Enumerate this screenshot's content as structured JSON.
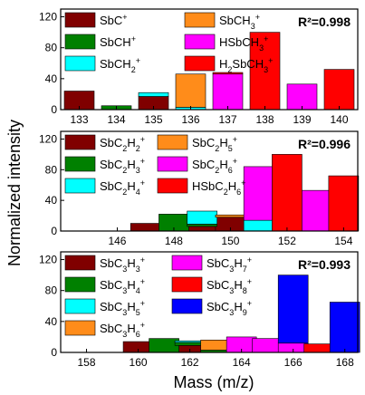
{
  "figure": {
    "ylabel": "Normalized intensity",
    "xlabel": "Mass (m/z)"
  },
  "chart_data": [
    {
      "type": "bar",
      "stacked": true,
      "r2": "R²=0.998",
      "xlim": [
        132.5,
        140.5
      ],
      "xticks": [
        133,
        134,
        135,
        136,
        137,
        138,
        139,
        140
      ],
      "ylim": [
        0,
        130
      ],
      "yticks": [
        0,
        40,
        80,
        120
      ],
      "series": [
        {
          "name": "SbC",
          "sup": "+",
          "color": "#800000",
          "values": [
            [
              133,
              24
            ],
            [
              135,
              17
            ]
          ]
        },
        {
          "name": "SbCH",
          "sup": "+",
          "color": "#008000",
          "values": [
            [
              134,
              5
            ]
          ]
        },
        {
          "name": "SbCH",
          "sub": "2",
          "sup": "+",
          "color": "#00ffff",
          "values": [
            [
              135,
              5
            ],
            [
              136,
              3
            ]
          ]
        },
        {
          "name": "SbCH",
          "sub": "3",
          "sup": "+",
          "color": "#ff8c1a",
          "values": [
            [
              136,
              43
            ]
          ]
        },
        {
          "name": "HSbCH",
          "sub": "3",
          "sup": "+",
          "color": "#ff00ff",
          "values": [
            [
              137,
              46
            ],
            [
              139,
              33
            ]
          ]
        },
        {
          "name": "H",
          "sub": "2",
          "name2": "SbCH",
          "sub2": "3",
          "sup": "+",
          "color": "#ff0000",
          "values": [
            [
              137,
              2
            ],
            [
              138,
              100
            ],
            [
              140,
              52
            ]
          ]
        }
      ]
    },
    {
      "type": "bar",
      "stacked": true,
      "r2": "R²=0.996",
      "xlim": [
        144,
        154.5
      ],
      "xticks": [
        146,
        148,
        150,
        152,
        154
      ],
      "ylim": [
        0,
        130
      ],
      "yticks": [
        0,
        40,
        80,
        120
      ],
      "series": [
        {
          "name": "SbC",
          "sub": "2",
          "name2": "H",
          "sub2": "2",
          "sup": "+",
          "color": "#800000",
          "values": [
            [
              147,
              10
            ],
            [
              149,
              6
            ],
            [
              150,
              18
            ]
          ]
        },
        {
          "name": "SbC",
          "sub": "2",
          "name2": "H",
          "sub2": "3",
          "sup": "+",
          "color": "#008000",
          "values": [
            [
              148,
              22
            ],
            [
              149,
              3
            ]
          ]
        },
        {
          "name": "SbC",
          "sub": "2",
          "name2": "H",
          "sub2": "4",
          "sup": "+",
          "color": "#00ffff",
          "values": [
            [
              149,
              17
            ],
            [
              151,
              14
            ]
          ]
        },
        {
          "name": "SbC",
          "sub": "2",
          "name2": "H",
          "sub2": "5",
          "sup": "+",
          "color": "#ff8c1a",
          "values": [
            [
              150,
              3
            ]
          ]
        },
        {
          "name": "SbC",
          "sub": "2",
          "name2": "H",
          "sub2": "6",
          "sup": "+",
          "color": "#ff00ff",
          "values": [
            [
              151,
              70
            ],
            [
              153,
              53
            ]
          ]
        },
        {
          "name": "HSbC",
          "sub": "2",
          "name2": "H",
          "sub2": "6",
          "sup": "+",
          "color": "#ff0000",
          "values": [
            [
              152,
              100
            ],
            [
              154,
              72
            ]
          ]
        }
      ]
    },
    {
      "type": "bar",
      "stacked": true,
      "r2": "R²=0.993",
      "xlim": [
        157,
        168.5
      ],
      "xticks": [
        158,
        160,
        162,
        164,
        166,
        168
      ],
      "ylim": [
        0,
        130
      ],
      "yticks": [
        0,
        40,
        80,
        120
      ],
      "series": [
        {
          "name": "SbC",
          "sub": "3",
          "name2": "H",
          "sub2": "3",
          "sup": "+",
          "color": "#800000",
          "values": [
            [
              160,
              14
            ],
            [
              162,
              9
            ]
          ]
        },
        {
          "name": "SbC",
          "sub": "3",
          "name2": "H",
          "sub2": "4",
          "sup": "+",
          "color": "#008000",
          "values": [
            [
              161,
              18
            ],
            [
              162,
              4
            ],
            [
              163,
              3
            ]
          ]
        },
        {
          "name": "SbC",
          "sub": "3",
          "name2": "H",
          "sub2": "5",
          "sup": "+",
          "color": "#00ffff",
          "values": [
            [
              162,
              2
            ]
          ]
        },
        {
          "name": "SbC",
          "sub": "3",
          "name2": "H",
          "sub2": "6",
          "sup": "+",
          "color": "#ff8c1a",
          "values": [
            [
              163,
              13
            ]
          ]
        },
        {
          "name": "SbC",
          "sub": "3",
          "name2": "H",
          "sub2": "7",
          "sup": "+",
          "color": "#ff00ff",
          "values": [
            [
              164,
              20
            ],
            [
              165,
              18
            ],
            [
              166,
              12
            ]
          ]
        },
        {
          "name": "SbC",
          "sub": "3",
          "name2": "H",
          "sub2": "8",
          "sup": "+",
          "color": "#ff0000",
          "values": [
            [
              167,
              11
            ]
          ]
        },
        {
          "name": "SbC",
          "sub": "3",
          "name2": "H",
          "sub2": "9",
          "sup": "+",
          "color": "#0000ff",
          "values": [
            [
              166,
              88
            ],
            [
              168,
              65
            ]
          ]
        }
      ]
    }
  ]
}
